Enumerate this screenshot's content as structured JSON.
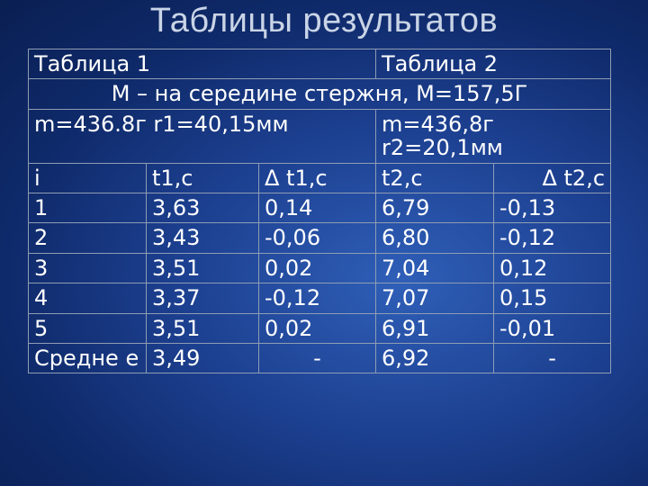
{
  "title": "Таблицы результатов",
  "table": {
    "table1_label": "Таблица 1",
    "table2_label": "Таблица 2",
    "condition": "М – на середине стержня, М=157,5Г",
    "table1_params": "m=436.8г r1=40,15мм",
    "table2_params_line1": "m=436,8г",
    "table2_params_line2": "r2=20,1мм",
    "headers": [
      "i",
      "t1,c",
      "Δ t1,c",
      "t2,c",
      "Δ t2,c"
    ],
    "rows": [
      [
        "1",
        "3,63",
        "0,14",
        "6,79",
        "-0,13"
      ],
      [
        "2",
        "3,43",
        "-0,06",
        "6,80",
        "-0,12"
      ],
      [
        "3",
        "3,51",
        "0,02",
        "7,04",
        "0,12"
      ],
      [
        "4",
        "3,37",
        "-0,12",
        "7,07",
        "0,15"
      ],
      [
        "5",
        "3,51",
        "0,02",
        "6,91",
        "-0,01"
      ]
    ],
    "average": [
      "Средне е",
      "3,49",
      "-",
      "6,92",
      "-"
    ]
  },
  "colors": {
    "background": "#1c3f8f",
    "title": "#c9d4e6",
    "text": "#ffffff",
    "border": "#8f9db3"
  }
}
